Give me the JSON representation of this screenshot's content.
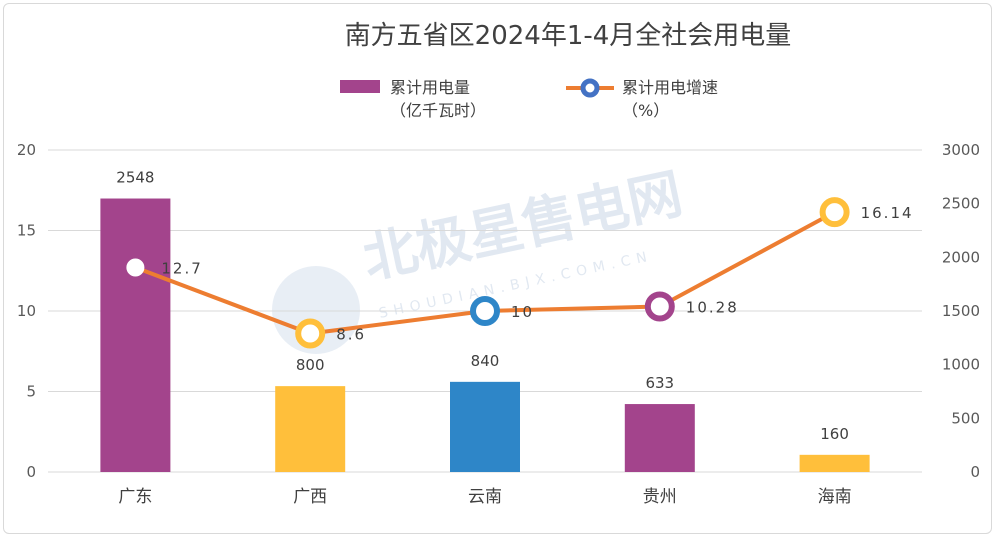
{
  "chart_data": {
    "type": "bar+line",
    "title": "南方五省区2024年1-4月全社会用电量",
    "categories": [
      "广东",
      "广西",
      "云南",
      "贵州",
      "海南"
    ],
    "series": [
      {
        "name": "累计用电量",
        "name_line2": "（亿千瓦时）",
        "type": "bar",
        "axis": "right",
        "values": [
          2548,
          800,
          840,
          633,
          160
        ],
        "labels": [
          "2548",
          "800",
          "840",
          "633",
          "160"
        ],
        "colors": [
          "#a3448c",
          "#ffbf3b",
          "#2e86c8",
          "#a3448c",
          "#ffbf3b"
        ]
      },
      {
        "name": "累计用电增速",
        "name_line2": "（%）",
        "type": "line",
        "axis": "left",
        "values": [
          12.7,
          8.6,
          10,
          10.28,
          16.14
        ],
        "labels": [
          "12.7",
          "8.6",
          "10",
          "10.28",
          "16.14"
        ],
        "line_color": "#ed7d31",
        "marker_colors": [
          "#ffffff",
          "#ffbf3b",
          "#2e86c8",
          "#a3448c",
          "#ffbf3b"
        ]
      }
    ],
    "y_left": {
      "range": [
        0,
        20
      ],
      "ticks": [
        "0",
        "5",
        "10",
        "15",
        "20"
      ]
    },
    "y_right": {
      "range": [
        0,
        3000
      ],
      "ticks": [
        "0",
        "500",
        "1000",
        "1500",
        "2000",
        "2500",
        "3000"
      ]
    },
    "legend_position": "top-center",
    "grid": true
  },
  "watermark": {
    "text": "北极星售电网",
    "sub": "SHOUDIAN.BJX.COM.CN"
  },
  "colors": {
    "legend_bar": "#a3448c",
    "legend_marker": "#4472c4",
    "line": "#ed7d31",
    "grid": "#d9d9d9"
  }
}
